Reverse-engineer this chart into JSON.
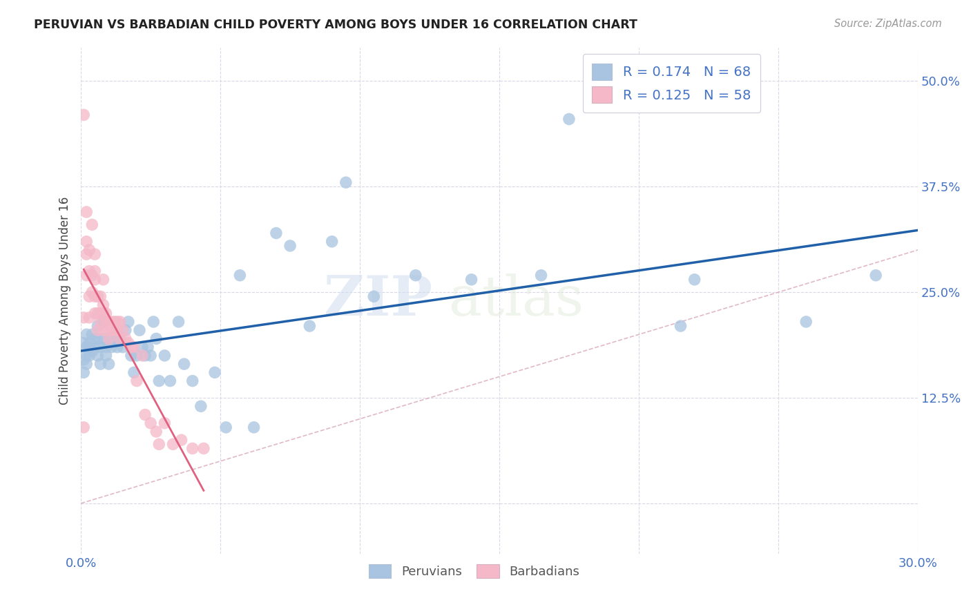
{
  "title": "PERUVIAN VS BARBADIAN CHILD POVERTY AMONG BOYS UNDER 16 CORRELATION CHART",
  "source": "Source: ZipAtlas.com",
  "ylabel": "Child Poverty Among Boys Under 16",
  "xlim": [
    0.0,
    0.3
  ],
  "ylim": [
    -0.06,
    0.54
  ],
  "xticks": [
    0.0,
    0.05,
    0.1,
    0.15,
    0.2,
    0.25,
    0.3
  ],
  "xticklabels": [
    "0.0%",
    "",
    "",
    "",
    "",
    "",
    "30.0%"
  ],
  "yticks": [
    0.0,
    0.125,
    0.25,
    0.375,
    0.5
  ],
  "yticklabels": [
    "",
    "12.5%",
    "25.0%",
    "37.5%",
    "50.0%"
  ],
  "blue_R": 0.174,
  "blue_N": 68,
  "pink_R": 0.125,
  "pink_N": 58,
  "blue_color": "#a8c4e0",
  "pink_color": "#f4b8c8",
  "blue_line_color": "#2060a8",
  "pink_line_color": "#e06080",
  "ref_line_color": "#ccccdd",
  "background_color": "#ffffff",
  "watermark": "ZIPatlas",
  "blue_scatter_x": [
    0.001,
    0.001,
    0.001,
    0.002,
    0.002,
    0.002,
    0.002,
    0.003,
    0.003,
    0.003,
    0.004,
    0.004,
    0.005,
    0.005,
    0.006,
    0.006,
    0.006,
    0.007,
    0.007,
    0.008,
    0.008,
    0.009,
    0.009,
    0.01,
    0.01,
    0.011,
    0.012,
    0.013,
    0.013,
    0.014,
    0.015,
    0.016,
    0.017,
    0.018,
    0.019,
    0.02,
    0.021,
    0.022,
    0.023,
    0.024,
    0.025,
    0.026,
    0.027,
    0.028,
    0.03,
    0.032,
    0.035,
    0.037,
    0.04,
    0.043,
    0.048,
    0.052,
    0.057,
    0.062,
    0.07,
    0.075,
    0.082,
    0.09,
    0.095,
    0.105,
    0.12,
    0.14,
    0.165,
    0.175,
    0.215,
    0.22,
    0.26,
    0.285
  ],
  "blue_scatter_y": [
    0.19,
    0.17,
    0.155,
    0.185,
    0.175,
    0.2,
    0.165,
    0.19,
    0.175,
    0.185,
    0.18,
    0.2,
    0.185,
    0.195,
    0.175,
    0.195,
    0.21,
    0.185,
    0.165,
    0.195,
    0.215,
    0.185,
    0.175,
    0.195,
    0.165,
    0.185,
    0.195,
    0.2,
    0.185,
    0.195,
    0.185,
    0.205,
    0.215,
    0.175,
    0.155,
    0.175,
    0.205,
    0.185,
    0.175,
    0.185,
    0.175,
    0.215,
    0.195,
    0.145,
    0.175,
    0.145,
    0.215,
    0.165,
    0.145,
    0.115,
    0.155,
    0.09,
    0.27,
    0.09,
    0.32,
    0.305,
    0.21,
    0.31,
    0.38,
    0.245,
    0.27,
    0.265,
    0.27,
    0.455,
    0.21,
    0.265,
    0.215,
    0.27
  ],
  "pink_scatter_x": [
    0.001,
    0.001,
    0.001,
    0.002,
    0.002,
    0.002,
    0.002,
    0.003,
    0.003,
    0.003,
    0.003,
    0.004,
    0.004,
    0.004,
    0.005,
    0.005,
    0.005,
    0.005,
    0.005,
    0.006,
    0.006,
    0.006,
    0.007,
    0.007,
    0.007,
    0.008,
    0.008,
    0.008,
    0.008,
    0.009,
    0.009,
    0.01,
    0.01,
    0.01,
    0.011,
    0.011,
    0.012,
    0.012,
    0.013,
    0.013,
    0.014,
    0.014,
    0.015,
    0.016,
    0.017,
    0.018,
    0.019,
    0.02,
    0.022,
    0.023,
    0.025,
    0.027,
    0.028,
    0.03,
    0.033,
    0.036,
    0.04,
    0.044
  ],
  "pink_scatter_y": [
    0.46,
    0.22,
    0.09,
    0.31,
    0.295,
    0.27,
    0.345,
    0.3,
    0.275,
    0.245,
    0.22,
    0.33,
    0.27,
    0.25,
    0.295,
    0.265,
    0.245,
    0.225,
    0.275,
    0.245,
    0.225,
    0.205,
    0.245,
    0.225,
    0.215,
    0.235,
    0.225,
    0.205,
    0.265,
    0.225,
    0.215,
    0.215,
    0.205,
    0.195,
    0.215,
    0.205,
    0.215,
    0.205,
    0.215,
    0.205,
    0.215,
    0.195,
    0.205,
    0.195,
    0.19,
    0.185,
    0.185,
    0.145,
    0.175,
    0.105,
    0.095,
    0.085,
    0.07,
    0.095,
    0.07,
    0.075,
    0.065,
    0.065
  ]
}
